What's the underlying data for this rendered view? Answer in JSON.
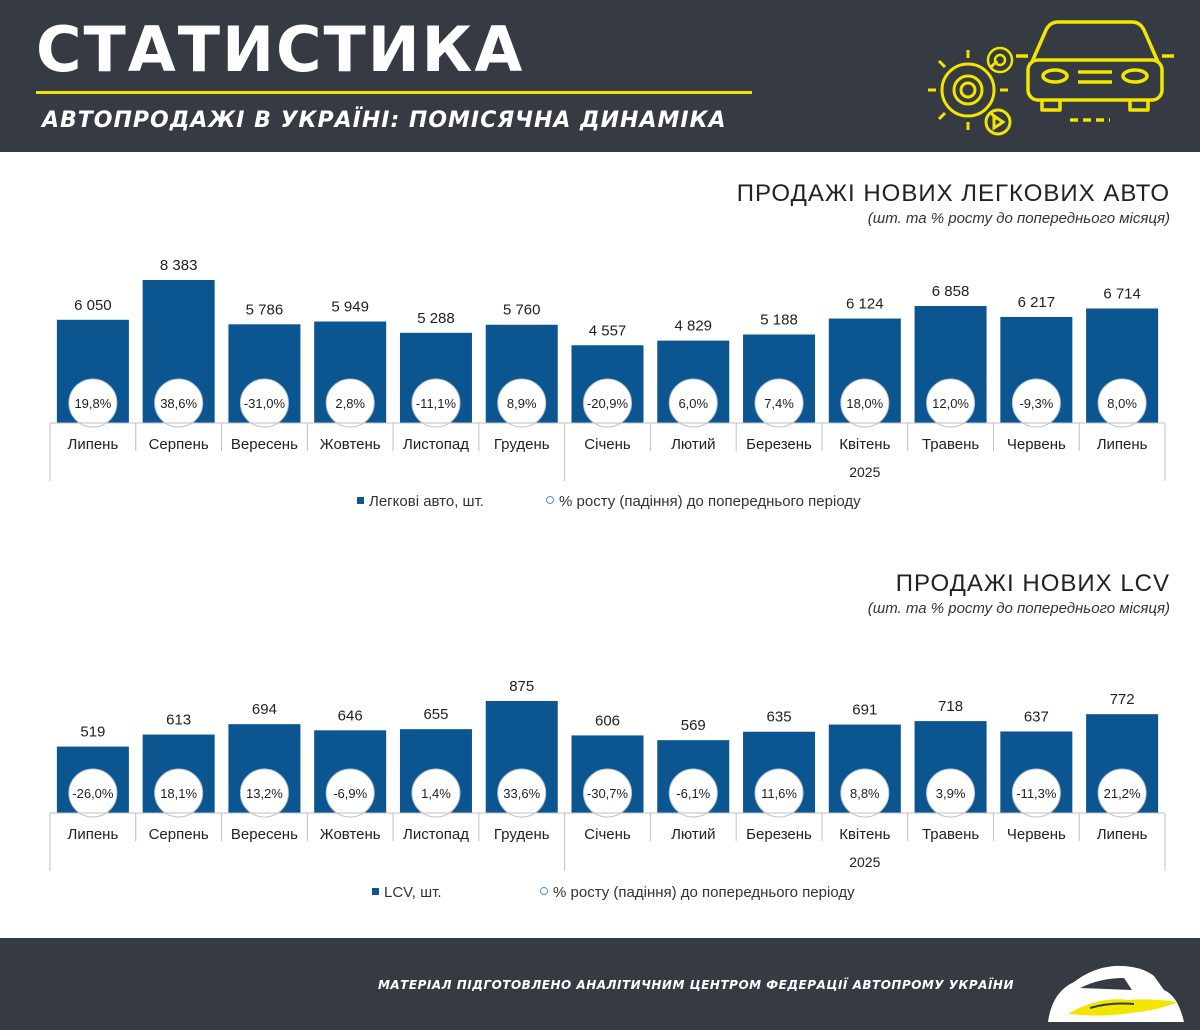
{
  "header": {
    "title": "СТАТИСТИКА",
    "subtitle": "АВТОПРОДАЖІ В УКРАЇНІ: ПОМІСЯЧНА ДИНАМІКА",
    "accent_color": "#f2e600",
    "background_color": "#363a43",
    "icons": [
      "gear-icon",
      "play-icon",
      "car-icon"
    ]
  },
  "footer": {
    "note": "МАТЕРІАЛ ПІДГОТОВЛЕНО АНАЛІТИЧНИМ ЦЕНТРОМ ФЕДЕРАЦІЇ АВТОПРОМУ УКРАЇНИ",
    "icons": [
      "car-silhouette-logo"
    ]
  },
  "chart_data": [
    {
      "type": "bar",
      "title": "ПРОДАЖІ НОВИХ ЛЕГКОВИХ АВТО",
      "subtitle": "(шт. та % росту до попереднього місяця)",
      "categories": [
        "Липень",
        "Серпень",
        "Вересень",
        "Жовтень",
        "Листопад",
        "Грудень",
        "Січень",
        "Лютий",
        "Березень",
        "Квітень",
        "Травень",
        "Червень",
        "Липень"
      ],
      "year_group": {
        "label": "2025",
        "start_index": 6
      },
      "series": [
        {
          "name": "Легкові авто, шт.",
          "values": [
            6050,
            8383,
            5786,
            5949,
            5288,
            5760,
            4557,
            4829,
            5188,
            6124,
            6858,
            6217,
            6714
          ],
          "value_labels": [
            "6 050",
            "8 383",
            "5 786",
            "5 949",
            "5 288",
            "5 760",
            "4 557",
            "4 829",
            "5 188",
            "6 124",
            "6 858",
            "6 217",
            "6 714"
          ],
          "color": "#0b5590"
        },
        {
          "name": "% росту (падіння) до попереднього періоду",
          "values": [
            19.8,
            38.6,
            -31.0,
            2.8,
            -11.1,
            8.9,
            -20.9,
            6.0,
            7.4,
            18.0,
            12.0,
            -9.3,
            8.0
          ],
          "value_labels": [
            "19,8%",
            "38,6%",
            "-31,0%",
            "2,8%",
            "-11,1%",
            "8,9%",
            "-20,9%",
            "6,0%",
            "7,4%",
            "18,0%",
            "12,0%",
            "-9,3%",
            "8,0%"
          ],
          "color": "#4a90e2"
        }
      ],
      "ylim": [
        0,
        8383
      ],
      "legend": "bottom-center"
    },
    {
      "type": "bar",
      "title": "ПРОДАЖІ НОВИХ  LCV",
      "subtitle": "(шт. та % росту до попереднього місяця)",
      "categories": [
        "Липень",
        "Серпень",
        "Вересень",
        "Жовтень",
        "Листопад",
        "Грудень",
        "Січень",
        "Лютий",
        "Березень",
        "Квітень",
        "Травень",
        "Червень",
        "Липень"
      ],
      "year_group": {
        "label": "2025",
        "start_index": 6
      },
      "series": [
        {
          "name": "LCV, шт.",
          "values": [
            519,
            613,
            694,
            646,
            655,
            875,
            606,
            569,
            635,
            691,
            718,
            637,
            772
          ],
          "value_labels": [
            "519",
            "613",
            "694",
            "646",
            "655",
            "875",
            "606",
            "569",
            "635",
            "691",
            "718",
            "637",
            "772"
          ],
          "color": "#0b5590"
        },
        {
          "name": "% росту (падіння) до попереднього періоду",
          "values": [
            -26.0,
            18.1,
            13.2,
            -6.9,
            1.4,
            33.6,
            -30.7,
            -6.1,
            11.6,
            8.8,
            3.9,
            -11.3,
            21.2
          ],
          "value_labels": [
            "-26,0%",
            "18,1%",
            "13,2%",
            "-6,9%",
            "1,4%",
            "33,6%",
            "-30,7%",
            "-6,1%",
            "11,6%",
            "8,8%",
            "3,9%",
            "-11,3%",
            "21,2%"
          ],
          "color": "#4a90e2"
        }
      ],
      "ylim": [
        0,
        875
      ],
      "legend": "bottom-center"
    }
  ]
}
